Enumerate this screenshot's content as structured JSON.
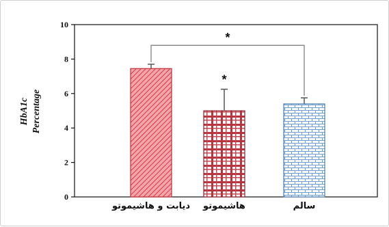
{
  "chart_data": {
    "type": "bar",
    "categories": [
      "دیابت و هاشیموتو",
      "هاشیموتو",
      "سالم"
    ],
    "values": [
      7.45,
      5.0,
      5.4
    ],
    "errors": [
      0.25,
      1.25,
      0.35
    ],
    "ylabel_line1": "HbA1c",
    "ylabel_line2": "Percentage",
    "ylim": [
      0,
      10
    ],
    "yticks": [
      0,
      2,
      4,
      6,
      8,
      10
    ],
    "grid": false,
    "legend": "none",
    "annotations": {
      "bar_star": {
        "category_index": 1,
        "text": "*"
      },
      "bracket": {
        "from_index": 0,
        "to_index": 2,
        "level": 8.8,
        "text": "*"
      }
    },
    "colors": {
      "bar1": "#e8828a",
      "bar1_pattern": "#d9393f",
      "bar2": "#c0404a",
      "bar3": "#8fb8dc",
      "axis": "#111111"
    }
  }
}
